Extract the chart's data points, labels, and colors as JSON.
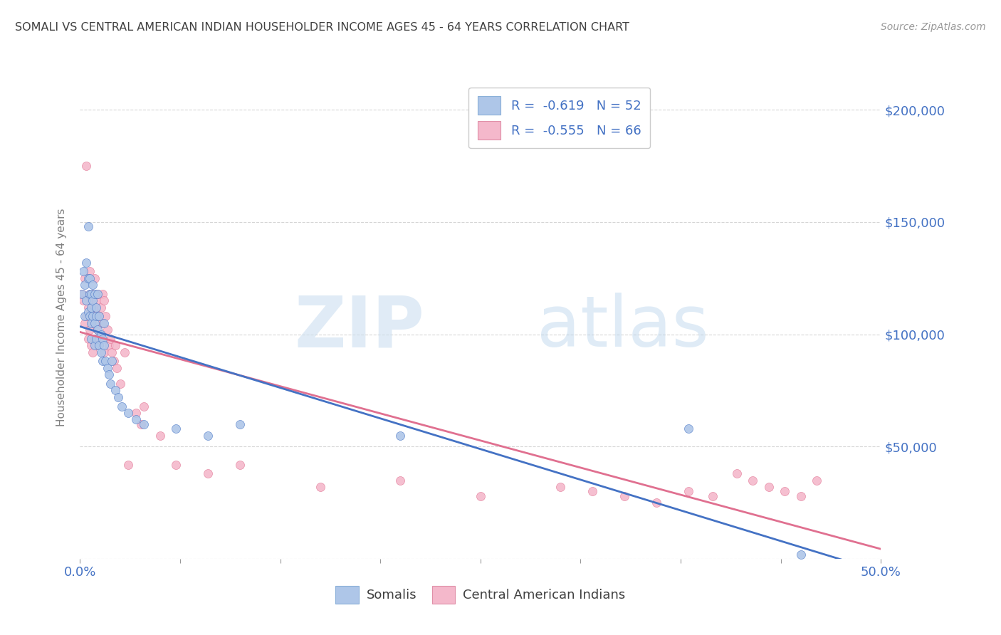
{
  "title": "SOMALI VS CENTRAL AMERICAN INDIAN HOUSEHOLDER INCOME AGES 45 - 64 YEARS CORRELATION CHART",
  "source": "Source: ZipAtlas.com",
  "ylabel_label": "Householder Income Ages 45 - 64 years",
  "ylabel_ticks": [
    0,
    50000,
    100000,
    150000,
    200000
  ],
  "ylabel_tick_labels": [
    "",
    "$50,000",
    "$100,000",
    "$150,000",
    "$200,000"
  ],
  "xmin": 0.0,
  "xmax": 0.5,
  "ymin": 0,
  "ymax": 215000,
  "watermark_zip": "ZIP",
  "watermark_atlas": "atlas",
  "legend_labels": [
    "Somalis",
    "Central American Indians"
  ],
  "somali_R": "-0.619",
  "somali_N": "52",
  "central_R": "-0.555",
  "central_N": "66",
  "somali_color": "#aec6e8",
  "central_color": "#f4b8cb",
  "somali_line_color": "#4472c4",
  "central_line_color": "#e07090",
  "background_color": "#ffffff",
  "grid_color": "#cccccc",
  "title_color": "#404040",
  "axis_label_color": "#808080",
  "tick_color": "#4472c4",
  "somali_x": [
    0.001,
    0.002,
    0.003,
    0.003,
    0.004,
    0.004,
    0.005,
    0.005,
    0.005,
    0.006,
    0.006,
    0.006,
    0.007,
    0.007,
    0.007,
    0.007,
    0.008,
    0.008,
    0.008,
    0.009,
    0.009,
    0.009,
    0.01,
    0.01,
    0.01,
    0.011,
    0.011,
    0.012,
    0.012,
    0.013,
    0.013,
    0.014,
    0.014,
    0.015,
    0.015,
    0.016,
    0.017,
    0.018,
    0.019,
    0.02,
    0.022,
    0.024,
    0.026,
    0.03,
    0.035,
    0.04,
    0.06,
    0.08,
    0.1,
    0.2,
    0.38,
    0.45
  ],
  "somali_y": [
    118000,
    128000,
    122000,
    108000,
    132000,
    115000,
    125000,
    110000,
    148000,
    118000,
    108000,
    125000,
    112000,
    105000,
    118000,
    98000,
    122000,
    108000,
    115000,
    105000,
    118000,
    95000,
    108000,
    112000,
    98000,
    102000,
    118000,
    95000,
    108000,
    100000,
    92000,
    98000,
    88000,
    105000,
    95000,
    88000,
    85000,
    82000,
    78000,
    88000,
    75000,
    72000,
    68000,
    65000,
    62000,
    60000,
    58000,
    55000,
    60000,
    55000,
    58000,
    2000
  ],
  "central_x": [
    0.001,
    0.002,
    0.003,
    0.003,
    0.004,
    0.004,
    0.005,
    0.005,
    0.006,
    0.006,
    0.006,
    0.007,
    0.007,
    0.007,
    0.008,
    0.008,
    0.008,
    0.009,
    0.009,
    0.009,
    0.01,
    0.01,
    0.01,
    0.011,
    0.011,
    0.012,
    0.012,
    0.013,
    0.013,
    0.014,
    0.014,
    0.015,
    0.015,
    0.016,
    0.017,
    0.018,
    0.019,
    0.02,
    0.021,
    0.022,
    0.023,
    0.025,
    0.028,
    0.03,
    0.035,
    0.038,
    0.04,
    0.05,
    0.06,
    0.08,
    0.1,
    0.15,
    0.2,
    0.25,
    0.3,
    0.32,
    0.34,
    0.36,
    0.38,
    0.395,
    0.41,
    0.42,
    0.43,
    0.44,
    0.45,
    0.46
  ],
  "central_y": [
    118000,
    115000,
    105000,
    125000,
    108000,
    175000,
    112000,
    98000,
    118000,
    102000,
    128000,
    108000,
    95000,
    115000,
    105000,
    92000,
    118000,
    112000,
    98000,
    125000,
    108000,
    95000,
    115000,
    102000,
    118000,
    108000,
    95000,
    112000,
    98000,
    105000,
    118000,
    92000,
    115000,
    108000,
    102000,
    95000,
    98000,
    92000,
    88000,
    95000,
    85000,
    78000,
    92000,
    42000,
    65000,
    60000,
    68000,
    55000,
    42000,
    38000,
    42000,
    32000,
    35000,
    28000,
    32000,
    30000,
    28000,
    25000,
    30000,
    28000,
    38000,
    35000,
    32000,
    30000,
    28000,
    35000
  ]
}
